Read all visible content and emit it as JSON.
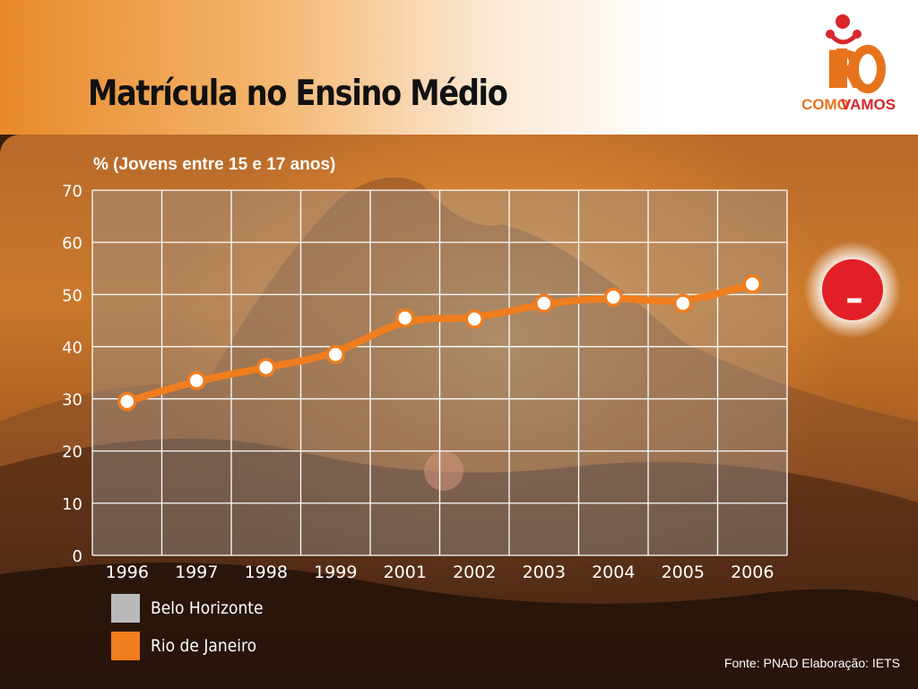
{
  "slide": {
    "title": "Matrícula no Ensino Médio",
    "source": "Fonte: PNAD Elaboração: IETS"
  },
  "logo": {
    "name": "Rio Como Vamos",
    "text_main": "RIO",
    "text_sub_1": "COMO",
    "text_sub_2": "VAMOS",
    "color_main": "#e7731c",
    "color_accent": "#d8262b"
  },
  "status_badge": {
    "symbol": "–",
    "color": "#e21f26",
    "meaning": "negative"
  },
  "colors": {
    "line": "#f07d1e",
    "marker_fill": "#ffffff",
    "belo_horizonte": "#b9b9b9",
    "rio_de_janeiro": "#f07d1e",
    "plot_bg": "rgba(150,150,150,0.42)",
    "grid": "#ffffff"
  },
  "chart_data": {
    "type": "line",
    "ylabel": "% (Jovens entre 15 e 17 anos)",
    "categories": [
      "1996",
      "1997",
      "1998",
      "1999",
      "2001",
      "2002",
      "2003",
      "2004",
      "2005",
      "2006"
    ],
    "ylim": [
      0,
      70
    ],
    "yticks": [
      0,
      10,
      20,
      30,
      40,
      50,
      60,
      70
    ],
    "grid": true,
    "legend_position": "bottom-left",
    "legend": [
      {
        "name": "Belo Horizonte",
        "color": "#b9b9b9"
      },
      {
        "name": "Rio de Janeiro",
        "color": "#f07d1e"
      }
    ],
    "series": [
      {
        "name": "Rio de Janeiro",
        "color": "#f07d1e",
        "values": [
          29.5,
          33.5,
          36.0,
          38.5,
          45.5,
          45.3,
          48.3,
          49.5,
          48.3,
          52.0
        ]
      }
    ]
  }
}
